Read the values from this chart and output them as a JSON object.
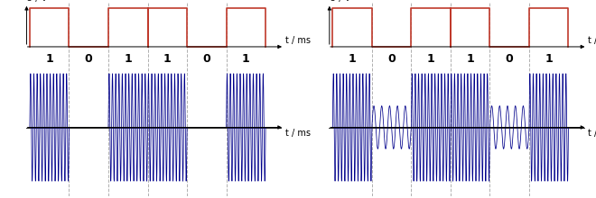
{
  "bits": [
    1,
    0,
    1,
    1,
    0,
    1
  ],
  "bit_duration": 1.0,
  "carrier_freq_high": 12.0,
  "carrier_freq_low": 5.0,
  "square_color": "#c0392b",
  "signal_color": "#00008b",
  "background_color": "#ffffff",
  "grid_color": "#b0b0b0",
  "font_size_label": 7,
  "font_size_bits": 9
}
